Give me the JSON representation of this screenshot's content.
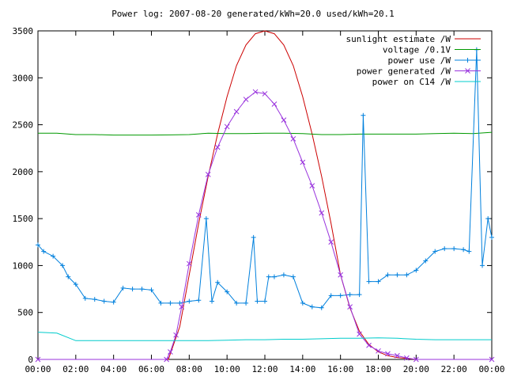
{
  "chart_data": {
    "type": "line",
    "title": "Power log: 2007-08-20 generated/kWh=20.0 used/kWh=20.1",
    "xlabel": "",
    "ylabel": "",
    "xlim": [
      0,
      24
    ],
    "ylim": [
      0,
      3500
    ],
    "x_ticks": [
      "00:00",
      "02:00",
      "04:00",
      "06:00",
      "08:00",
      "10:00",
      "12:00",
      "14:00",
      "16:00",
      "18:00",
      "20:00",
      "22:00",
      "00:00"
    ],
    "y_ticks": [
      0,
      500,
      1000,
      1500,
      2000,
      2500,
      3000,
      3500
    ],
    "grid": false,
    "legend_position": "top-right",
    "series": [
      {
        "name": "sunlight estimate /W",
        "color": "#cc0000",
        "style": "line",
        "x": [
          0,
          6.9,
          7.5,
          8,
          8.5,
          9,
          9.5,
          10,
          10.5,
          11,
          11.5,
          12,
          12.5,
          13,
          13.5,
          14,
          14.5,
          15,
          15.5,
          16,
          16.5,
          17,
          17.5,
          18,
          18.5,
          19,
          19.5,
          20,
          24
        ],
        "y": [
          0,
          0,
          350,
          900,
          1450,
          1950,
          2400,
          2800,
          3130,
          3350,
          3470,
          3500,
          3470,
          3350,
          3130,
          2800,
          2400,
          1950,
          1450,
          900,
          550,
          300,
          160,
          80,
          40,
          20,
          10,
          0,
          0
        ]
      },
      {
        "name": "voltage /0.1V",
        "color": "#009900",
        "style": "line",
        "x": [
          0,
          1,
          2,
          3,
          4,
          5,
          6,
          7,
          8,
          9,
          10,
          11,
          12,
          13,
          14,
          15,
          16,
          17,
          18,
          19,
          20,
          21,
          22,
          23,
          24
        ],
        "y": [
          2410,
          2410,
          2395,
          2395,
          2390,
          2390,
          2390,
          2392,
          2395,
          2410,
          2405,
          2405,
          2410,
          2410,
          2405,
          2395,
          2395,
          2400,
          2400,
          2400,
          2400,
          2405,
          2410,
          2405,
          2420
        ]
      },
      {
        "name": "power use /W",
        "color": "#0080dd",
        "style": "linepoints",
        "x": [
          0,
          0.3,
          0.8,
          1.3,
          1.6,
          2,
          2.5,
          3,
          3.5,
          4,
          4.5,
          5,
          5.5,
          6,
          6.5,
          7,
          7.5,
          8,
          8.5,
          8.9,
          9.2,
          9.5,
          10,
          10.5,
          11,
          11.4,
          11.6,
          12,
          12.2,
          12.5,
          13,
          13.5,
          14,
          14.5,
          15,
          15.5,
          16,
          16.5,
          17,
          17.2,
          17.5,
          18,
          18.5,
          19,
          19.5,
          20,
          20.5,
          21,
          21.5,
          22,
          22.5,
          22.8,
          23.2,
          23.5,
          23.8,
          24
        ],
        "y": [
          1220,
          1150,
          1100,
          1000,
          880,
          800,
          650,
          640,
          620,
          610,
          760,
          750,
          750,
          740,
          600,
          600,
          600,
          620,
          630,
          1500,
          620,
          820,
          720,
          600,
          600,
          1300,
          620,
          620,
          880,
          880,
          900,
          880,
          600,
          560,
          550,
          680,
          680,
          690,
          690,
          2600,
          830,
          830,
          900,
          900,
          900,
          950,
          1050,
          1150,
          1180,
          1180,
          1170,
          1150,
          3300,
          1000,
          1500,
          1300
        ]
      },
      {
        "name": "power generated /W",
        "color": "#9933dd",
        "style": "linepoints",
        "x": [
          0,
          6.8,
          7,
          7.3,
          7.6,
          8,
          8.5,
          9,
          9.5,
          10,
          10.5,
          11,
          11.5,
          12,
          12.5,
          13,
          13.5,
          14,
          14.5,
          15,
          15.5,
          16,
          16.5,
          17,
          17.5,
          18,
          18.5,
          19,
          19.5,
          20,
          24
        ],
        "y": [
          0,
          0,
          80,
          260,
          560,
          1020,
          1540,
          1970,
          2260,
          2480,
          2640,
          2770,
          2850,
          2830,
          2720,
          2550,
          2350,
          2100,
          1850,
          1560,
          1250,
          900,
          560,
          270,
          150,
          90,
          60,
          40,
          15,
          0,
          0
        ]
      },
      {
        "name": "power on C14 /W",
        "color": "#00cccc",
        "style": "line",
        "x": [
          0,
          1,
          2,
          3,
          4,
          5,
          6,
          7,
          8,
          9,
          10,
          11,
          12,
          13,
          14,
          15,
          16,
          17,
          18,
          19,
          20,
          21,
          22,
          23,
          24
        ],
        "y": [
          290,
          280,
          200,
          200,
          200,
          200,
          200,
          200,
          200,
          200,
          205,
          210,
          210,
          215,
          215,
          220,
          225,
          225,
          230,
          225,
          215,
          210,
          210,
          210,
          210
        ]
      }
    ]
  }
}
